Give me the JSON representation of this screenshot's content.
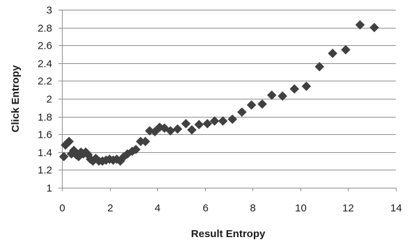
{
  "chart_data": {
    "type": "scatter",
    "title": "",
    "xlabel": "Result Entropy",
    "ylabel": "Click Entropy",
    "xlim": [
      0,
      14
    ],
    "ylim": [
      1,
      3
    ],
    "x_ticks": [
      0,
      2,
      4,
      6,
      8,
      10,
      12,
      14
    ],
    "y_ticks": [
      1,
      1.2,
      1.4,
      1.6,
      1.8,
      2,
      2.2,
      2.4,
      2.6,
      2.8,
      3
    ],
    "x_tick_labels": [
      "0",
      "2",
      "4",
      "6",
      "8",
      "10",
      "12",
      "14"
    ],
    "y_tick_labels": [
      "1",
      "1.2",
      "1.4",
      "1.6",
      "1.8",
      "2",
      "2.2",
      "2.4",
      "2.6",
      "2.8",
      "3"
    ],
    "grid": "horizontal",
    "legend": "none",
    "marker": "diamond",
    "marker_color": "#404040",
    "series": [
      {
        "x": [
          0.08,
          0.15,
          0.22,
          0.3,
          0.4,
          0.5,
          0.6,
          0.7,
          0.8,
          0.9,
          1.0,
          1.1,
          1.2,
          1.3,
          1.42,
          1.55,
          1.7,
          1.85,
          2.0,
          2.15,
          2.3,
          2.45,
          2.6,
          2.75,
          2.95,
          3.1,
          3.3,
          3.5,
          3.68,
          3.9,
          4.1,
          4.3,
          4.55,
          4.85,
          5.2,
          5.45,
          5.75,
          6.1,
          6.4,
          6.75,
          7.15,
          7.55,
          7.95,
          8.4,
          8.8,
          9.25,
          9.75,
          10.25,
          10.8,
          11.35,
          11.9,
          12.5,
          13.1
        ],
        "y": [
          1.35,
          1.48,
          1.5,
          1.52,
          1.38,
          1.42,
          1.37,
          1.35,
          1.4,
          1.38,
          1.4,
          1.37,
          1.32,
          1.3,
          1.33,
          1.3,
          1.3,
          1.31,
          1.32,
          1.31,
          1.32,
          1.3,
          1.35,
          1.38,
          1.41,
          1.43,
          1.52,
          1.52,
          1.64,
          1.63,
          1.68,
          1.67,
          1.64,
          1.66,
          1.72,
          1.65,
          1.71,
          1.72,
          1.75,
          1.75,
          1.77,
          1.85,
          1.93,
          1.94,
          2.04,
          2.03,
          2.11,
          2.14,
          2.36,
          2.51,
          2.55,
          2.83,
          2.8
        ]
      }
    ]
  }
}
